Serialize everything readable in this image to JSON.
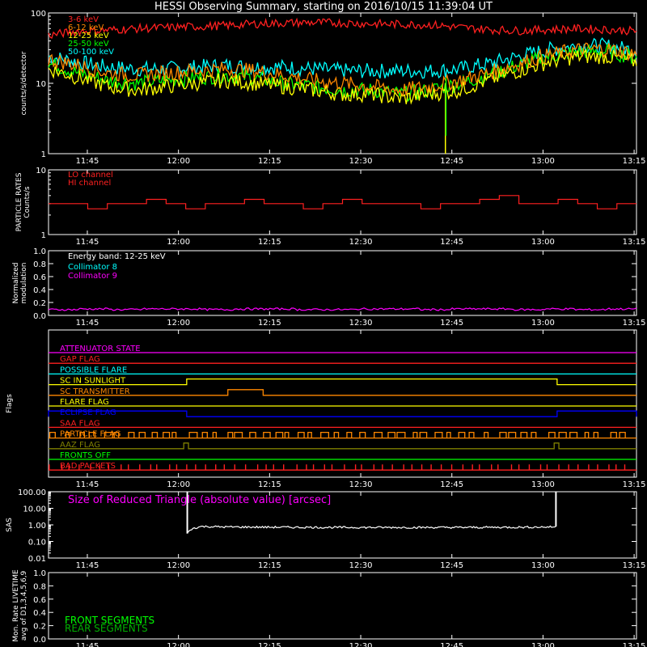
{
  "title": "HESSI Observing Summary, starting on 2016/10/15 11:39:04 UT",
  "time_ticks": [
    "11:45",
    "12:00",
    "12:15",
    "12:30",
    "12:45",
    "13:00",
    "13:15"
  ],
  "chart_data": [
    {
      "type": "line",
      "panel": "count-rates",
      "ylabel": "counts/s/detector",
      "ylog": true,
      "ylim": [
        1,
        100
      ],
      "y_tick_labels": [
        "1",
        "10",
        "100"
      ],
      "x_range_min": [
        0,
        100
      ],
      "series": [
        {
          "name": "3-6 keV",
          "color": "#ff2020",
          "x": [
            0,
            5,
            10,
            15,
            20,
            25,
            30,
            35,
            40,
            45,
            50,
            55,
            60,
            65,
            70,
            75,
            80,
            85,
            90,
            95,
            100
          ],
          "values": [
            48,
            55,
            57,
            60,
            62,
            64,
            66,
            70,
            72,
            73,
            72,
            70,
            69,
            68,
            62,
            58,
            56,
            58,
            60,
            58,
            55
          ]
        },
        {
          "name": "6-12 keV",
          "color": "#ff8800",
          "x": [
            0,
            5,
            10,
            15,
            20,
            25,
            30,
            35,
            40,
            45,
            50,
            55,
            60,
            65,
            70,
            75,
            80,
            85,
            90,
            95,
            100
          ],
          "values": [
            22,
            18,
            14,
            13,
            14,
            15,
            16,
            15,
            13,
            11,
            10,
            9,
            8,
            9,
            11,
            14,
            19,
            25,
            30,
            31,
            26
          ]
        },
        {
          "name": "12-25 keV",
          "color": "#ffff00",
          "x": [
            0,
            5,
            10,
            15,
            20,
            25,
            30,
            35,
            40,
            45,
            50,
            55,
            60,
            65,
            70,
            75,
            80,
            85,
            90,
            95,
            100
          ],
          "values": [
            16,
            12,
            9,
            8,
            9,
            10,
            11,
            10,
            9,
            8,
            7,
            7,
            6,
            7,
            8,
            11,
            15,
            20,
            24,
            24,
            20
          ]
        },
        {
          "name": "25-50 keV",
          "color": "#00ff00",
          "x": [
            0,
            5,
            10,
            15,
            20,
            25,
            30,
            35,
            40,
            45,
            50,
            55,
            60,
            65,
            70,
            75,
            80,
            85,
            90,
            95,
            100
          ],
          "values": [
            19,
            14,
            11,
            10,
            11,
            12,
            13,
            12,
            10,
            9,
            8,
            8,
            7,
            8,
            10,
            13,
            18,
            24,
            28,
            28,
            23
          ]
        },
        {
          "name": "50-100 keV",
          "color": "#00ffff",
          "x": [
            0,
            5,
            10,
            15,
            20,
            25,
            30,
            35,
            40,
            45,
            50,
            55,
            60,
            65,
            70,
            75,
            80,
            85,
            90,
            95,
            100
          ],
          "values": [
            24,
            20,
            17,
            16,
            16,
            17,
            18,
            17,
            17,
            16,
            15,
            15,
            15,
            15,
            16,
            19,
            24,
            30,
            34,
            34,
            29
          ]
        }
      ]
    },
    {
      "type": "line",
      "panel": "particle-rates",
      "ylabel": "PARTICLE RATES Counts/s",
      "ylog": true,
      "ylim": [
        1,
        10
      ],
      "y_tick_labels": [
        "1",
        "10"
      ],
      "series": [
        {
          "name": "LO channel",
          "color": "#ff2020",
          "values": []
        },
        {
          "name": "HI channel",
          "color": "#ff2020",
          "values": [
            3,
            3,
            2.5,
            3,
            3,
            3.5,
            3,
            2.5,
            3,
            3,
            3.5,
            3,
            3,
            2.5,
            3,
            3.5,
            3,
            3,
            3,
            2.5,
            3,
            3,
            3.5,
            4,
            3,
            3,
            3.5,
            3,
            2.5,
            3
          ]
        }
      ]
    },
    {
      "type": "line",
      "panel": "modulation",
      "ylabel": "Normalized modulation",
      "ylim": [
        0,
        1
      ],
      "y_tick_labels": [
        "0.0",
        "0.2",
        "0.4",
        "0.6",
        "0.8",
        "1.0"
      ],
      "annotation": "Energy band: 12-25 keV",
      "series": [
        {
          "name": "Collimator 8",
          "color": "#00ffff",
          "values": []
        },
        {
          "name": "Collimator 9",
          "color": "#ff00ff",
          "values": [
            0.09,
            0.1,
            0.09,
            0.1,
            0.1,
            0.09,
            0.1,
            0.1,
            0.09,
            0.09,
            0.1,
            0.1,
            0.09,
            0.1,
            0.1,
            0.09,
            0.1,
            0.09,
            0.1,
            0.1
          ]
        }
      ]
    },
    {
      "type": "line",
      "panel": "flags",
      "ylabel": "Flags",
      "series": [
        {
          "name": "ATTENUATOR STATE",
          "color": "#ff00ff"
        },
        {
          "name": "GAP FLAG",
          "color": "#ff2020"
        },
        {
          "name": "POSSIBLE FLARE",
          "color": "#00ffff"
        },
        {
          "name": "SC IN SUNLIGHT",
          "color": "#ffff00",
          "high_intervals": [
            [
              23.5,
              86.5
            ]
          ]
        },
        {
          "name": "SC TRANSMITTER",
          "color": "#ff8800",
          "high_intervals": [
            [
              30.5,
              36.5
            ]
          ]
        },
        {
          "name": "FLARE FLAG",
          "color": "#ffff00"
        },
        {
          "name": "ECLIPSE FLAG",
          "color": "#0000ff",
          "high_intervals": [
            [
              0,
              23.5
            ],
            [
              86.5,
              100
            ]
          ]
        },
        {
          "name": "SAA FLAG",
          "color": "#ff2020"
        },
        {
          "name": "PARTICLE FLAG",
          "color": "#ff8800"
        },
        {
          "name": "AAZ FLAG",
          "color": "#808000",
          "high_intervals": [
            [
              23,
              23.8
            ],
            [
              86,
              86.8
            ]
          ]
        },
        {
          "name": "FRONTS OFF",
          "color": "#00ff00"
        },
        {
          "name": "BAD PACKETS",
          "color": "#ff2020"
        }
      ]
    },
    {
      "type": "line",
      "panel": "sas",
      "ylabel": "SAS",
      "ylog": true,
      "ylim": [
        0.01,
        100
      ],
      "y_tick_labels": [
        "0.01",
        "0.10",
        "1.00",
        "10.00",
        "100.00"
      ],
      "annotation": "Size of Reduced Triangle (absolute value) [arcsec]",
      "series": [
        {
          "name": "Size of Reduced Triangle",
          "color": "#ffffff",
          "x": [
            23.6,
            24.5,
            26,
            30,
            40,
            50,
            60,
            70,
            80,
            86.3
          ],
          "values": [
            0.3,
            0.6,
            0.8,
            0.75,
            0.72,
            0.7,
            0.7,
            0.7,
            0.72,
            0.75
          ]
        }
      ]
    },
    {
      "type": "line",
      "panel": "livetime",
      "ylabel": "Mon. Rate LIVETIME avg of D1,3,4,5,6,9",
      "ylim": [
        0,
        1
      ],
      "y_tick_labels": [
        "0.0",
        "0.2",
        "0.4",
        "0.6",
        "0.8",
        "1.0"
      ],
      "series": [
        {
          "name": "FRONT SEGMENTS",
          "color": "#00ff00",
          "values": []
        },
        {
          "name": "REAR SEGMENTS",
          "color": "#00b000",
          "values": []
        }
      ]
    }
  ]
}
